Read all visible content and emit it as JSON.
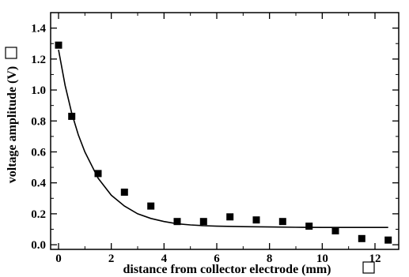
{
  "chart_data": {
    "type": "scatter",
    "xlabel": "distance from collector electrode (mm)",
    "ylabel": "voltage amplitude (V)",
    "xlim": [
      -0.3,
      12.9
    ],
    "ylim": [
      -0.03,
      1.5
    ],
    "x_ticks": [
      "0",
      "2",
      "4",
      "6",
      "8",
      "10",
      "12"
    ],
    "y_ticks": [
      "0.0",
      "0.2",
      "0.4",
      "0.6",
      "0.8",
      "1.0",
      "1.2",
      "1.4"
    ],
    "grid": false,
    "legend": "none",
    "series": [
      {
        "kind": "markers",
        "marker": "square",
        "color": "#000000",
        "x": [
          0,
          0.5,
          1.5,
          2.5,
          3.5,
          4.5,
          5.5,
          6.5,
          7.5,
          8.5,
          9.5,
          10.5,
          11.5,
          12.5
        ],
        "y": [
          1.29,
          0.83,
          0.46,
          0.34,
          0.25,
          0.15,
          0.15,
          0.18,
          0.16,
          0.15,
          0.12,
          0.09,
          0.04,
          0.03
        ]
      },
      {
        "kind": "fit-line",
        "color": "#000000",
        "x": [
          0,
          0.25,
          0.5,
          0.75,
          1,
          1.5,
          2,
          2.5,
          3,
          3.5,
          4,
          4.5,
          5,
          5.5,
          6,
          7,
          8,
          9,
          10,
          11,
          12,
          12.5
        ],
        "y": [
          1.26,
          1.03,
          0.85,
          0.71,
          0.6,
          0.43,
          0.32,
          0.25,
          0.2,
          0.17,
          0.15,
          0.135,
          0.128,
          0.123,
          0.12,
          0.117,
          0.115,
          0.113,
          0.112,
          0.112,
          0.112,
          0.112
        ]
      }
    ]
  }
}
